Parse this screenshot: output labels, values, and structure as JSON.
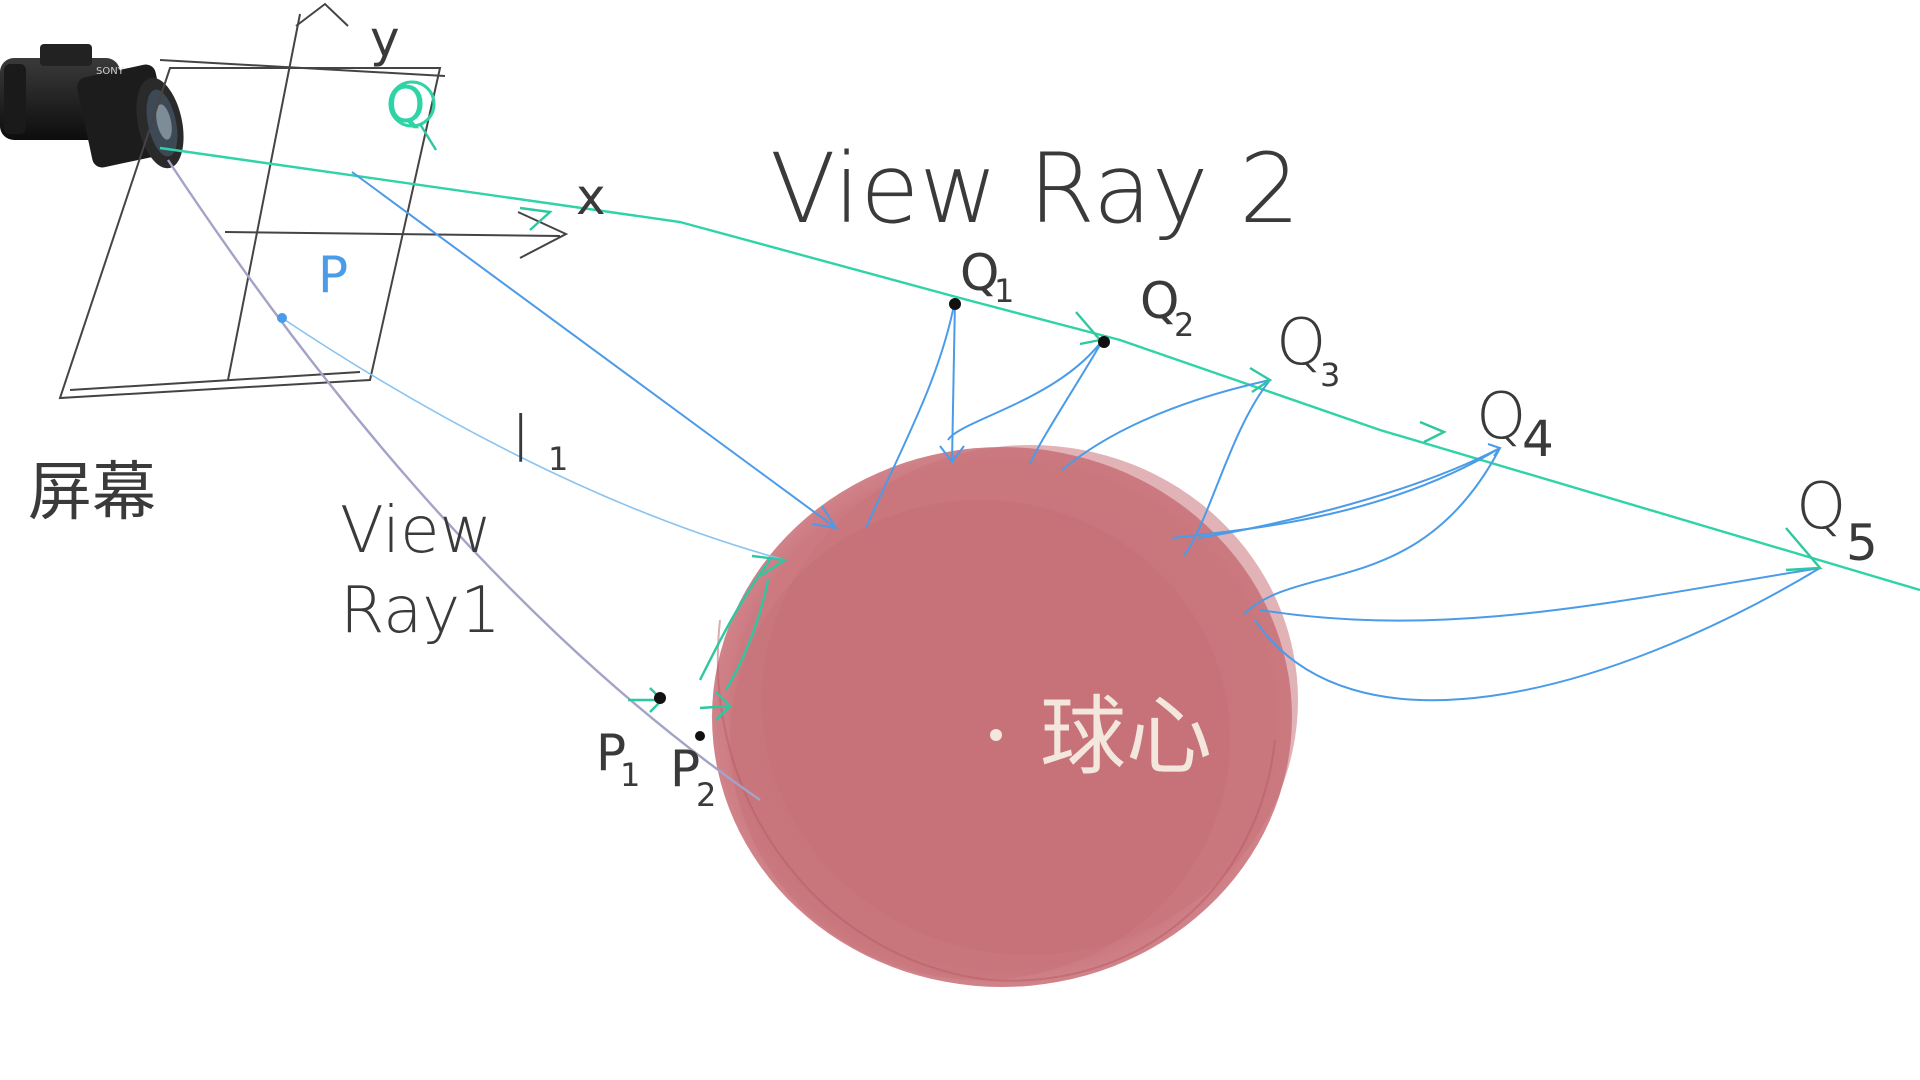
{
  "labels": {
    "screen": "屏幕",
    "view_ray_2": "View Ray 2",
    "view_ray_1_line1": "View",
    "view_ray_1_line2": "Ray1",
    "l1": "l",
    "l1_sub": "1",
    "axis_x": "x",
    "axis_y": "y",
    "point_p": "P",
    "point_q": "Q",
    "sphere_center": "球心",
    "q1": "Q",
    "q1_sub": "1",
    "q2": "Q",
    "q2_sub": "2",
    "q3": "Q",
    "q3_sub": "3",
    "q4": "Q",
    "q4_sub": "4",
    "q5": "Q",
    "q5_sub": "5",
    "p1": "P",
    "p1_sub": "1",
    "p2": "P",
    "p2_sub": "2"
  },
  "icons": {
    "camera": "camera-icon"
  },
  "colors": {
    "sphere": "#c97178",
    "view_ray_2": "#2ed3a6",
    "view_ray_1": "#a3a3c8",
    "distance_arrows": "#4a9be8",
    "handwriting": "#3a3a3a"
  }
}
